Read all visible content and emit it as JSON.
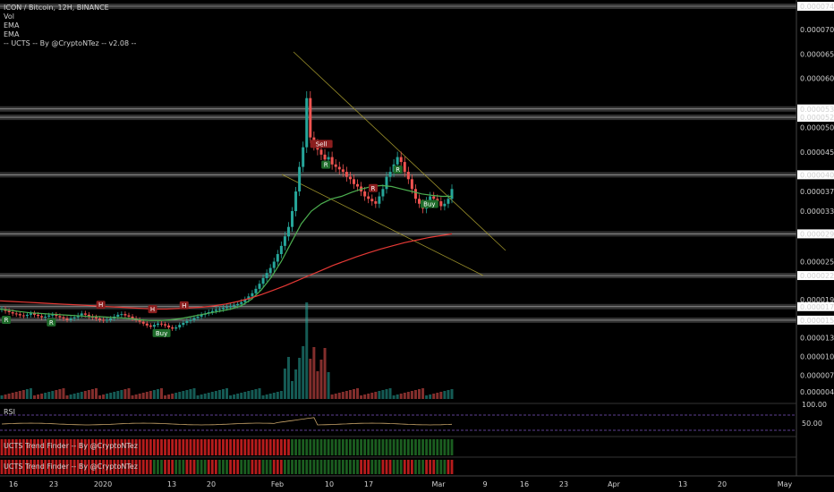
{
  "header": {
    "title": "ICON / Bitcoin, 12H, BINANCE",
    "indicators": [
      "Vol",
      "EMA",
      "EMA",
      "-- UCTS -- By @CryptoNTez -- v2.08 --"
    ]
  },
  "panes": {
    "rsi_label": "RSI",
    "trend1_label": "UCTS Trend Finder -- By @CryptoNTez",
    "trend2_label": "UCTS Trend Finder -- By @CryptoNTez"
  },
  "colors": {
    "up": "#26a69a",
    "down": "#ef5350",
    "ema_fast": "#4caf50",
    "ema_slow": "#e53935",
    "wedge": "#9a8f2a",
    "rsi": "#c9a56a",
    "rsi_band": "#7e57c2",
    "trend_green": "#1b5e20",
    "trend_red": "#b71c1c"
  },
  "chart_data": {
    "type": "candlestick",
    "price_axis_ticks": [
      "0.00007470",
      "0.00007000",
      "0.00006500",
      "0.00006000",
      "0.00005380",
      "0.00005210",
      "0.00005000",
      "0.00004500",
      "0.00004040",
      "0.00003700",
      "0.00003300",
      "0.00002940",
      "0.00002500",
      "0.00002280",
      "0.00001900",
      "0.00001788",
      "0.00001574",
      "0.00001300",
      "0.00001000",
      "0.00000700",
      "0.00000440"
    ],
    "price_axis_values": [
      7.47e-05,
      7e-05,
      6.5e-05,
      6e-05,
      5.38e-05,
      5.21e-05,
      5e-05,
      4.5e-05,
      4.04e-05,
      3.7e-05,
      3.3e-05,
      2.94e-05,
      2.5e-05,
      2.28e-05,
      1.9e-05,
      1.788e-05,
      1.574e-05,
      1.3e-05,
      1e-05,
      7e-06,
      4.4e-06
    ],
    "rsi_ticks": [
      "100.00",
      "50.00"
    ],
    "time_axis": [
      "16",
      "23",
      "2020",
      "13",
      "20",
      "Feb",
      "10",
      "17",
      "Mar",
      "9",
      "16",
      "23",
      "Apr",
      "13",
      "20",
      "May"
    ],
    "horizontal_levels": [
      7.47e-05,
      5.38e-05,
      5.21e-05,
      4.04e-05,
      2.94e-05,
      2.28e-05,
      1.788e-05,
      1.574e-05
    ],
    "closes": [
      1.75e-05,
      1.72e-05,
      1.7e-05,
      1.68e-05,
      1.67e-05,
      1.65e-05,
      1.64e-05,
      1.66e-05,
      1.68e-05,
      1.66e-05,
      1.64e-05,
      1.62e-05,
      1.63e-05,
      1.65e-05,
      1.66e-05,
      1.64e-05,
      1.62e-05,
      1.6e-05,
      1.58e-05,
      1.6e-05,
      1.62e-05,
      1.65e-05,
      1.68e-05,
      1.66e-05,
      1.63e-05,
      1.62e-05,
      1.6e-05,
      1.58e-05,
      1.57e-05,
      1.58e-05,
      1.6e-05,
      1.63e-05,
      1.66e-05,
      1.67e-05,
      1.65e-05,
      1.63e-05,
      1.6e-05,
      1.58e-05,
      1.55e-05,
      1.52e-05,
      1.49e-05,
      1.47e-05,
      1.5e-05,
      1.52e-05,
      1.51e-05,
      1.49e-05,
      1.46e-05,
      1.44e-05,
      1.46e-05,
      1.5e-05,
      1.53e-05,
      1.56e-05,
      1.58e-05,
      1.61e-05,
      1.63e-05,
      1.66e-05,
      1.68e-05,
      1.7e-05,
      1.72e-05,
      1.74e-05,
      1.75e-05,
      1.77e-05,
      1.78e-05,
      1.8e-05,
      1.81e-05,
      1.83e-05,
      1.86e-05,
      1.9e-05,
      1.95e-05,
      2e-05,
      2.07e-05,
      2.15e-05,
      2.24e-05,
      2.32e-05,
      2.4e-05,
      2.5e-05,
      2.62e-05,
      2.75e-05,
      2.9e-05,
      3.05e-05,
      3.3e-05,
      3.7e-05,
      4.2e-05,
      4.6e-05,
      5.6e-05,
      4.8e-05,
      4.65e-05,
      4.55e-05,
      4.45e-05,
      4.35e-05,
      4.4e-05,
      4.25e-05,
      4.2e-05,
      4.15e-05,
      4.1e-05,
      4e-05,
      3.95e-05,
      3.85e-05,
      3.8e-05,
      3.7e-05,
      3.6e-05,
      3.55e-05,
      3.5e-05,
      3.45e-05,
      3.6e-05,
      3.75e-05,
      4e-05,
      4.1e-05,
      4.25e-05,
      4.4e-05,
      4.3e-05,
      4.1e-05,
      3.95e-05,
      3.75e-05,
      3.55e-05,
      3.45e-05,
      3.35e-05,
      3.5e-05,
      3.6e-05,
      3.55e-05,
      3.5e-05,
      3.4e-05,
      3.45e-05,
      3.55e-05,
      3.75e-05
    ],
    "ema_fast": [
      1.75e-05,
      1.73e-05,
      1.71e-05,
      1.69e-05,
      1.68e-05,
      1.67e-05,
      1.66e-05,
      1.65e-05,
      1.64e-05,
      1.63e-05,
      1.63e-05,
      1.62e-05,
      1.61e-05,
      1.6e-05,
      1.58e-05,
      1.57e-05,
      1.57e-05,
      1.58e-05,
      1.6e-05,
      1.63e-05,
      1.66e-05,
      1.69e-05,
      1.72e-05,
      1.75e-05,
      1.8e-05,
      1.9e-05,
      2.05e-05,
      2.25e-05,
      2.5e-05,
      2.8e-05,
      3.1e-05,
      3.3e-05,
      3.45e-05,
      3.55e-05,
      3.6e-05,
      3.68e-05,
      3.75e-05,
      3.8e-05,
      3.82e-05,
      3.8e-05,
      3.75e-05,
      3.7e-05,
      3.65e-05,
      3.62e-05,
      3.6e-05,
      3.6e-05
    ],
    "ema_slow": [
      1.88e-05,
      1.87e-05,
      1.86e-05,
      1.85e-05,
      1.84e-05,
      1.83e-05,
      1.82e-05,
      1.81e-05,
      1.8e-05,
      1.79e-05,
      1.78e-05,
      1.77e-05,
      1.76e-05,
      1.75e-05,
      1.75e-05,
      1.76e-05,
      1.77e-05,
      1.78e-05,
      1.8e-05,
      1.83e-05,
      1.87e-05,
      1.92e-05,
      1.98e-05,
      2.05e-05,
      2.12e-05,
      2.2e-05,
      2.28e-05,
      2.36e-05,
      2.44e-05,
      2.51e-05,
      2.58e-05,
      2.64e-05,
      2.7e-05,
      2.75e-05,
      2.8e-05,
      2.84e-05,
      2.88e-05,
      2.91e-05,
      2.94e-05
    ],
    "signals": [
      {
        "label": "R",
        "bar": 2,
        "type": "green"
      },
      {
        "label": "R",
        "bar": 22,
        "type": "green"
      },
      {
        "label": "H",
        "bar": 44,
        "type": "red"
      },
      {
        "label": "H",
        "bar": 67,
        "type": "red"
      },
      {
        "label": "Buy",
        "bar": 71,
        "type": "green"
      },
      {
        "label": "H",
        "bar": 81,
        "type": "red"
      },
      {
        "label": "Sell",
        "bar": 142,
        "type": "red"
      },
      {
        "label": "R",
        "bar": 144,
        "type": "green"
      },
      {
        "label": "R",
        "bar": 165,
        "type": "red"
      },
      {
        "label": "R",
        "bar": 176,
        "type": "green"
      },
      {
        "label": "Buy",
        "bar": 190,
        "type": "green"
      }
    ]
  }
}
